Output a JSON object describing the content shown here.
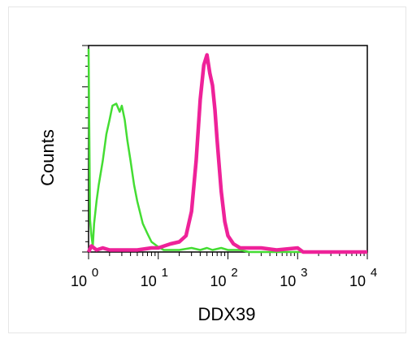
{
  "chart_data": {
    "type": "line",
    "title": "",
    "xlabel": "DDX39",
    "ylabel": "Counts",
    "x_scale": "log",
    "xlim": [
      1,
      10000
    ],
    "ylim": [
      0,
      1
    ],
    "x_ticks": [
      {
        "base": "10",
        "exp": "0",
        "value": 1
      },
      {
        "base": "10",
        "exp": "1",
        "value": 10
      },
      {
        "base": "10",
        "exp": "2",
        "value": 100
      },
      {
        "base": "10",
        "exp": "3",
        "value": 1000
      },
      {
        "base": "10",
        "exp": "4",
        "value": 10000
      }
    ],
    "grid": false,
    "legend": "none",
    "series": [
      {
        "color": "#44dd33",
        "x": [
          1,
          1.05,
          1.1,
          1.15,
          1.2,
          1.3,
          1.4,
          1.6,
          1.8,
          2.0,
          2.2,
          2.5,
          2.8,
          3.0,
          3.3,
          3.6,
          4.0,
          4.5,
          5.0,
          6.0,
          7.0,
          8.0,
          10,
          12,
          15,
          20,
          30,
          40,
          50,
          60,
          80,
          100,
          150,
          200,
          300,
          500,
          1000,
          10000
        ],
        "y": [
          1.0,
          0.16,
          0.08,
          0.03,
          0.14,
          0.25,
          0.33,
          0.45,
          0.58,
          0.65,
          0.72,
          0.73,
          0.69,
          0.72,
          0.65,
          0.55,
          0.45,
          0.33,
          0.25,
          0.14,
          0.09,
          0.05,
          0.025,
          0.01,
          0.01,
          0.01,
          0.02,
          0.01,
          0.02,
          0.01,
          0.02,
          0.01,
          0.01,
          0.0,
          0.0,
          0.0,
          0.0,
          0.0
        ]
      },
      {
        "color": "#ee2299",
        "x": [
          1,
          1.1,
          1.3,
          1.6,
          2,
          3,
          5,
          8,
          10,
          15,
          20,
          25,
          30,
          35,
          40,
          45,
          50,
          55,
          60,
          65,
          70,
          80,
          90,
          100,
          120,
          150,
          200,
          300,
          500,
          1000,
          1200,
          2000,
          5000,
          10000
        ],
        "y": [
          0.0,
          0.03,
          0.01,
          0.02,
          0.01,
          0.01,
          0.01,
          0.02,
          0.02,
          0.04,
          0.05,
          0.08,
          0.2,
          0.45,
          0.75,
          0.92,
          0.97,
          0.88,
          0.82,
          0.7,
          0.55,
          0.3,
          0.15,
          0.08,
          0.04,
          0.02,
          0.02,
          0.02,
          0.01,
          0.02,
          0.0,
          0.0,
          0.0,
          0.0
        ]
      }
    ]
  }
}
